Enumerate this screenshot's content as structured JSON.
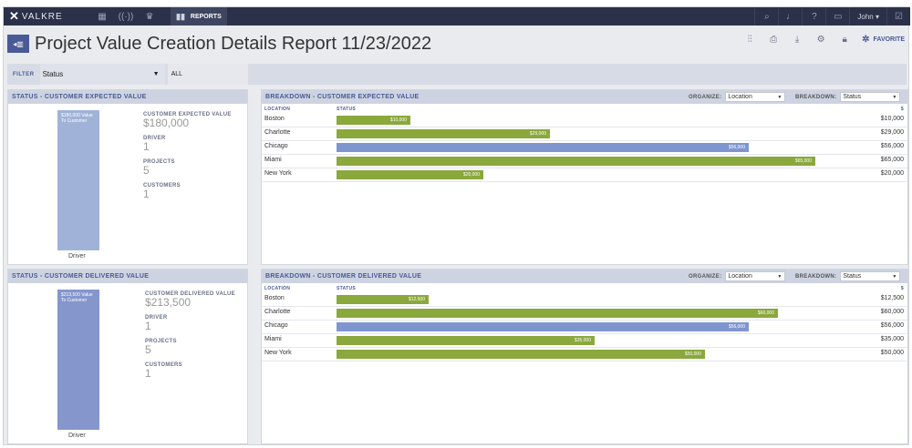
{
  "app": {
    "logo_text": "VALKRE",
    "user": "John"
  },
  "nav": {
    "active_label": "REPORTS"
  },
  "title": "Project Value Creation Details Report 11/23/2022",
  "actions": {
    "favorite_label": "FAVORITE"
  },
  "filter": {
    "label": "FILTER",
    "field": "Status",
    "value": "ALL"
  },
  "expected": {
    "status_title": "STATUS - CUSTOMER EXPECTED VALUE",
    "bar_text": "$180,000 Value To Customer",
    "driver_caption": "Driver",
    "kpis": [
      {
        "label": "CUSTOMER EXPECTED VALUE",
        "value": "$180,000"
      },
      {
        "label": "DRIVER",
        "value": "1"
      },
      {
        "label": "PROJECTS",
        "value": "5"
      },
      {
        "label": "CUSTOMERS",
        "value": "1"
      }
    ],
    "breakdown_title": "BREAKDOWN - CUSTOMER EXPECTED VALUE",
    "organize_label": "ORGANIZE:",
    "organize_value": "Location",
    "breakdown_label": "BREAKDOWN:",
    "breakdown_value": "Status",
    "col_location": "LOCATION",
    "col_status": "STATUS",
    "col_amount": "$",
    "rows": [
      {
        "location": "Boston",
        "bar_label": "$10,000",
        "amount": "$10,000",
        "value": 10000,
        "color": "#8aa83c"
      },
      {
        "location": "Charlotte",
        "bar_label": "$29,000",
        "amount": "$29,000",
        "value": 29000,
        "color": "#8aa83c"
      },
      {
        "location": "Chicago",
        "bar_label": "$56,000",
        "amount": "$56,000",
        "value": 56000,
        "color": "#7f95cf"
      },
      {
        "location": "Miami",
        "bar_label": "$65,000",
        "amount": "$65,000",
        "value": 65000,
        "color": "#8aa83c"
      },
      {
        "location": "New York",
        "bar_label": "$20,000",
        "amount": "$20,000",
        "value": 20000,
        "color": "#8aa83c"
      }
    ]
  },
  "delivered": {
    "status_title": "STATUS - CUSTOMER DELIVERED VALUE",
    "bar_text": "$213,500 Value To Customer",
    "driver_caption": "Driver",
    "kpis": [
      {
        "label": "CUSTOMER DELIVERED VALUE",
        "value": "$213,500"
      },
      {
        "label": "DRIVER",
        "value": "1"
      },
      {
        "label": "PROJECTS",
        "value": "5"
      },
      {
        "label": "CUSTOMERS",
        "value": "1"
      }
    ],
    "breakdown_title": "BREAKDOWN - CUSTOMER DELIVERED VALUE",
    "organize_label": "ORGANIZE:",
    "organize_value": "Location",
    "breakdown_label": "BREAKDOWN:",
    "breakdown_value": "Status",
    "col_location": "LOCATION",
    "col_status": "STATUS",
    "col_amount": "$",
    "rows": [
      {
        "location": "Boston",
        "bar_label": "$12,500",
        "amount": "$12,500",
        "value": 12500,
        "color": "#8aa83c"
      },
      {
        "location": "Charlotte",
        "bar_label": "$60,000",
        "amount": "$60,000",
        "value": 60000,
        "color": "#8aa83c"
      },
      {
        "location": "Chicago",
        "bar_label": "$56,000",
        "amount": "$56,000",
        "value": 56000,
        "color": "#7f95cf"
      },
      {
        "location": "Miami",
        "bar_label": "$35,000",
        "amount": "$35,000",
        "value": 35000,
        "color": "#8aa83c"
      },
      {
        "location": "New York",
        "bar_label": "$50,000",
        "amount": "$50,000",
        "value": 50000,
        "color": "#8aa83c"
      }
    ]
  }
}
